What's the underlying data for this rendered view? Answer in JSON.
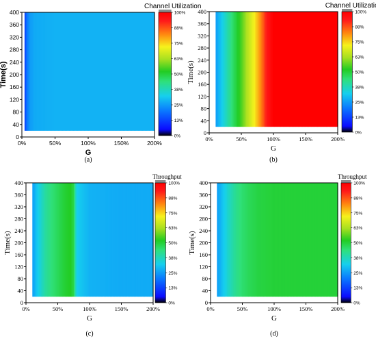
{
  "figure": {
    "panels": [
      {
        "caption": "(a)",
        "colorbar_title": "Channel Utilization"
      },
      {
        "caption": "(b)",
        "colorbar_title": "Channel Utilization"
      },
      {
        "caption": "(c)",
        "colorbar_title": "Throughput"
      },
      {
        "caption": "(d)",
        "colorbar_title": "Throughput"
      }
    ]
  },
  "chart_data": [
    {
      "type": "heatmap",
      "title": "Channel Utilization",
      "xlabel": "G",
      "ylabel": "Time(s)",
      "xlim": [
        0,
        200
      ],
      "ylim": [
        0,
        400
      ],
      "x_ticks": [
        0,
        50,
        100,
        150,
        200
      ],
      "x_tick_labels": [
        "0%",
        "50%",
        "100%",
        "150%",
        "200%"
      ],
      "y_ticks": [
        0,
        40,
        80,
        120,
        160,
        200,
        240,
        280,
        320,
        360,
        400
      ],
      "y_tick_labels": [
        "0",
        "40",
        "80",
        "120",
        "160",
        "200",
        "240",
        "280",
        "320",
        "360",
        "400"
      ],
      "data_extent": {
        "x": [
          4,
          200
        ],
        "y": [
          20,
          400
        ]
      },
      "colorbar": {
        "min": 0,
        "max": 100,
        "ticks": [
          "0%",
          "13%",
          "25%",
          "38%",
          "50%",
          "63%",
          "75%",
          "88%",
          "100%"
        ]
      },
      "x_profile": [
        [
          4,
          12
        ],
        [
          8,
          20
        ],
        [
          12,
          25
        ],
        [
          20,
          27
        ],
        [
          50,
          28
        ],
        [
          100,
          28
        ],
        [
          150,
          28
        ],
        [
          200,
          28
        ]
      ],
      "caption": "(a)"
    },
    {
      "type": "heatmap",
      "title": "Channel Utilization",
      "xlabel": "G",
      "ylabel": "Time(s)",
      "xlim": [
        0,
        200
      ],
      "ylim": [
        0,
        400
      ],
      "x_ticks": [
        0,
        50,
        100,
        150,
        200
      ],
      "x_tick_labels": [
        "0%",
        "50%",
        "100%",
        "150%",
        "200%"
      ],
      "y_ticks": [
        0,
        40,
        80,
        120,
        160,
        200,
        240,
        280,
        320,
        360,
        400
      ],
      "y_tick_labels": [
        "0",
        "40",
        "80",
        "120",
        "160",
        "200",
        "240",
        "280",
        "320",
        "360",
        "400"
      ],
      "data_extent": {
        "x": [
          10,
          200
        ],
        "y": [
          20,
          400
        ]
      },
      "colorbar": {
        "min": 0,
        "max": 100,
        "ticks": [
          "0%",
          "13%",
          "25%",
          "38%",
          "50%",
          "63%",
          "75%",
          "88%",
          "100%"
        ]
      },
      "x_profile": [
        [
          10,
          25
        ],
        [
          20,
          32
        ],
        [
          30,
          40
        ],
        [
          40,
          48
        ],
        [
          50,
          55
        ],
        [
          60,
          64
        ],
        [
          70,
          72
        ],
        [
          80,
          82
        ],
        [
          90,
          94
        ],
        [
          100,
          100
        ],
        [
          200,
          100
        ]
      ],
      "caption": "(b)"
    },
    {
      "type": "heatmap",
      "title": "Throughput",
      "xlabel": "G",
      "ylabel": "Time(s)",
      "xlim": [
        0,
        200
      ],
      "ylim": [
        0,
        400
      ],
      "x_ticks": [
        0,
        50,
        100,
        150,
        200
      ],
      "x_tick_labels": [
        "0%",
        "50%",
        "100%",
        "150%",
        "200%"
      ],
      "y_ticks": [
        0,
        40,
        80,
        120,
        160,
        200,
        240,
        280,
        320,
        360,
        400
      ],
      "y_tick_labels": [
        "0",
        "40",
        "80",
        "120",
        "160",
        "200",
        "240",
        "280",
        "320",
        "360",
        "400"
      ],
      "data_extent": {
        "x": [
          10,
          200
        ],
        "y": [
          20,
          400
        ]
      },
      "colorbar": {
        "min": 0,
        "max": 100,
        "ticks": [
          "0%",
          "13%",
          "25%",
          "38%",
          "50%",
          "63%",
          "75%",
          "88%",
          "100%"
        ]
      },
      "x_profile": [
        [
          10,
          25
        ],
        [
          20,
          33
        ],
        [
          30,
          40
        ],
        [
          40,
          44
        ],
        [
          50,
          47
        ],
        [
          60,
          50
        ],
        [
          70,
          52
        ],
        [
          75,
          48
        ],
        [
          80,
          32
        ],
        [
          100,
          28
        ],
        [
          150,
          27
        ],
        [
          200,
          27
        ]
      ],
      "caption": "(c)"
    },
    {
      "type": "heatmap",
      "title": "Throughput",
      "xlabel": "G",
      "ylabel": "Time(s)",
      "xlim": [
        0,
        200
      ],
      "ylim": [
        0,
        400
      ],
      "x_ticks": [
        0,
        50,
        100,
        150,
        200
      ],
      "x_tick_labels": [
        "0%",
        "50%",
        "100%",
        "150%",
        "200%"
      ],
      "y_ticks": [
        0,
        40,
        80,
        120,
        160,
        200,
        240,
        280,
        320,
        360,
        400
      ],
      "y_tick_labels": [
        "0",
        "40",
        "80",
        "120",
        "160",
        "200",
        "240",
        "280",
        "320",
        "360",
        "400"
      ],
      "data_extent": {
        "x": [
          10,
          200
        ],
        "y": [
          20,
          400
        ]
      },
      "colorbar": {
        "min": 0,
        "max": 100,
        "ticks": [
          "0%",
          "13%",
          "25%",
          "38%",
          "50%",
          "63%",
          "75%",
          "88%",
          "100%"
        ]
      },
      "x_profile": [
        [
          10,
          25
        ],
        [
          20,
          31
        ],
        [
          30,
          37
        ],
        [
          40,
          42
        ],
        [
          50,
          45
        ],
        [
          60,
          47
        ],
        [
          75,
          49
        ],
        [
          100,
          50
        ],
        [
          200,
          50
        ]
      ],
      "caption": "(d)"
    }
  ]
}
